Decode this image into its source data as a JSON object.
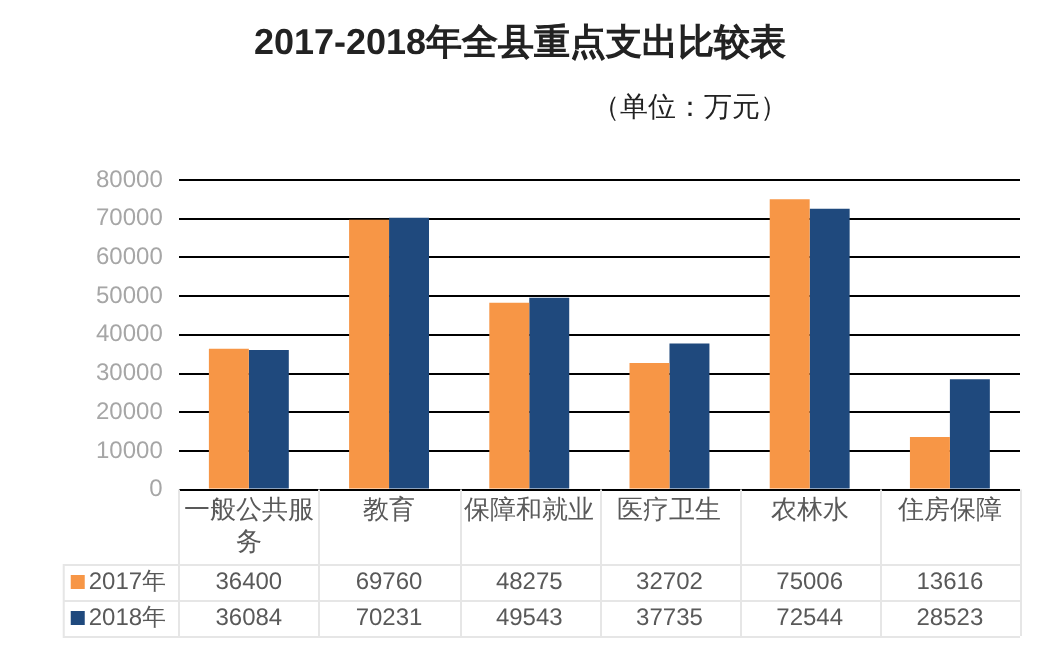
{
  "chart_data": {
    "type": "bar",
    "title": "2017-2018年全县重点支出比较表",
    "subtitle": "（单位：万元）",
    "categories": [
      "一般公共服务",
      "教育",
      "保障和就业",
      "医疗卫生",
      "农林水",
      "住房保障"
    ],
    "series": [
      {
        "name": "2017年",
        "color": "#f79646",
        "values": [
          36400,
          69760,
          48275,
          32702,
          75006,
          13616
        ]
      },
      {
        "name": "2018年",
        "color": "#1f497d",
        "values": [
          36084,
          70231,
          49543,
          37735,
          72544,
          28523
        ]
      }
    ],
    "ylim": [
      0,
      80000
    ],
    "yticks": [
      0,
      10000,
      20000,
      30000,
      40000,
      50000,
      60000,
      70000,
      80000
    ],
    "grid": "y",
    "legend": "bottom",
    "data_labels": true
  }
}
